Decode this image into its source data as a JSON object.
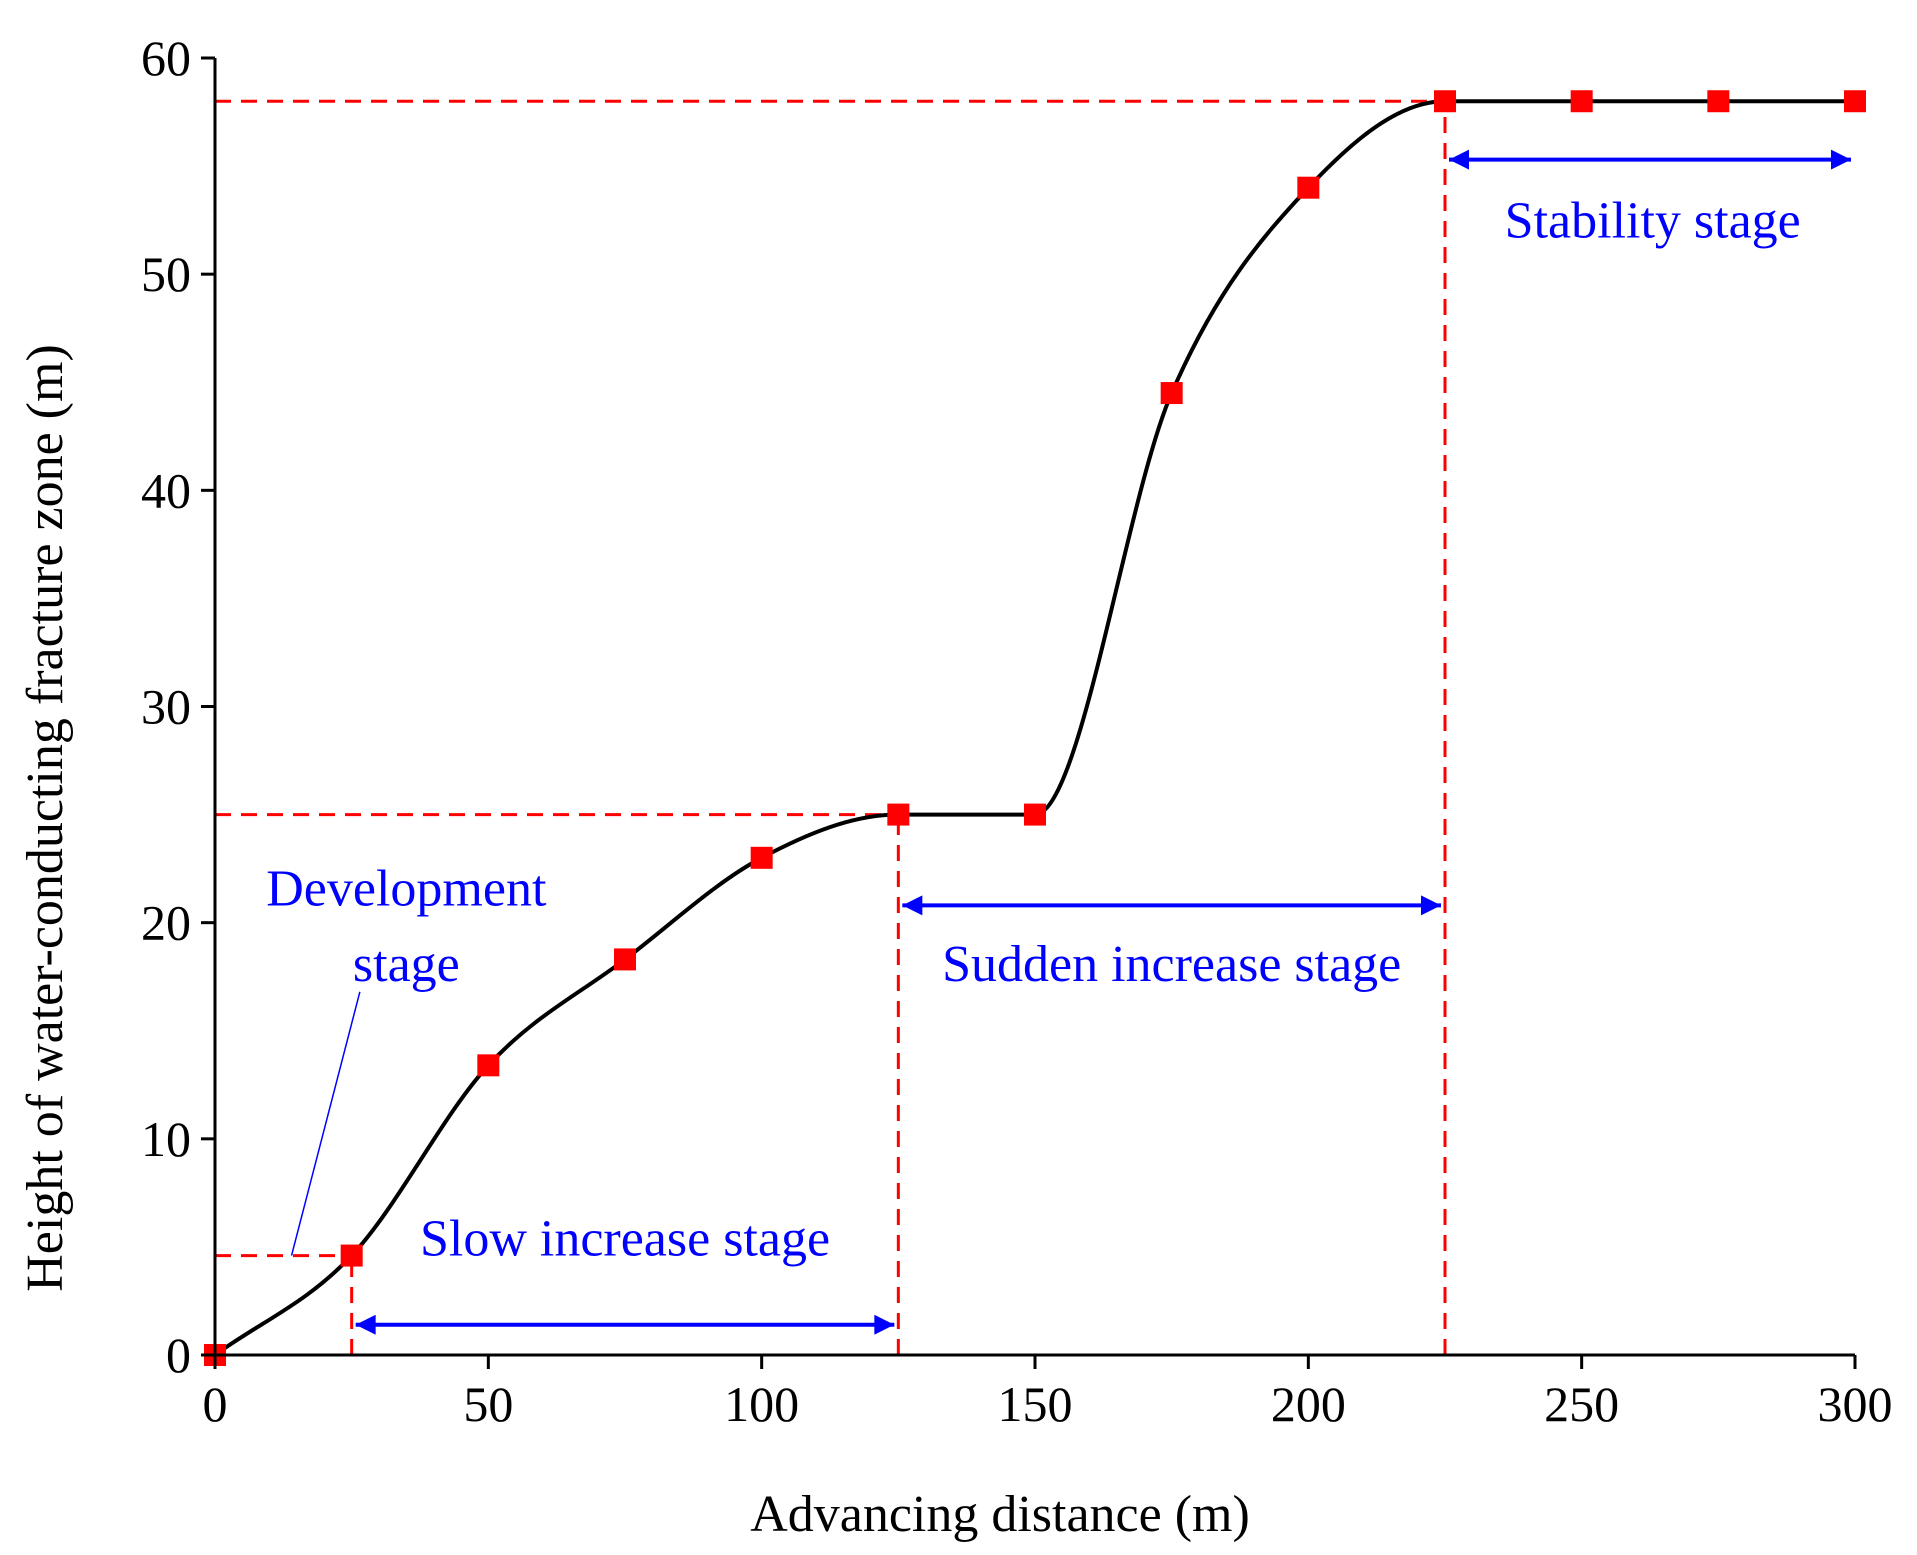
{
  "chart_data": {
    "type": "line",
    "title": "",
    "xlabel": "Advancing distance (m)",
    "ylabel": "Height of water-conducting fracture zone (m)",
    "xlim": [
      0,
      300
    ],
    "ylim": [
      0,
      60
    ],
    "xticks": [
      0,
      50,
      100,
      150,
      200,
      250,
      300
    ],
    "yticks": [
      0,
      10,
      20,
      30,
      40,
      50,
      60
    ],
    "grid": false,
    "series": [
      {
        "name": "Height of water-conducting fracture zone",
        "x": [
          0,
          25,
          50,
          75,
          100,
          125,
          150,
          175,
          200,
          225,
          250,
          275,
          300
        ],
        "y": [
          0,
          4.6,
          13.4,
          18.3,
          23.0,
          25.0,
          25.0,
          44.5,
          54.0,
          58.0,
          58.0,
          58.0,
          58.0
        ],
        "line_color": "#000000",
        "marker": "square",
        "marker_color": "#ff0000"
      }
    ],
    "reference_lines": {
      "color": "#ff0000",
      "horizontal": [
        {
          "y": 4.6,
          "x_from": 0,
          "x_to": 25
        },
        {
          "y": 25,
          "x_from": 0,
          "x_to": 125
        },
        {
          "y": 58,
          "x_from": 0,
          "x_to": 225
        }
      ],
      "vertical": [
        {
          "x": 25,
          "y_from": 0,
          "y_to": 4.6
        },
        {
          "x": 125,
          "y_from": 0,
          "y_to": 25
        },
        {
          "x": 225,
          "y_from": 0,
          "y_to": 58
        }
      ]
    },
    "stage_color": "#0000ff",
    "stages": [
      {
        "name": "slow",
        "label": "Slow increase stage",
        "x_from": 25,
        "x_to": 125,
        "arrow_y": 1.4,
        "label_x": 75,
        "label_y": 4.6
      },
      {
        "name": "sudden",
        "label": "Sudden increase stage",
        "x_from": 125,
        "x_to": 225,
        "arrow_y": 20.8,
        "label_x": 175,
        "label_y": 17.3
      },
      {
        "name": "stability",
        "label": "Stability stage",
        "x_from": 225,
        "x_to": 300,
        "arrow_y": 55.3,
        "label_x": 263,
        "label_y": 51.7
      }
    ],
    "annotations": [
      {
        "name": "development",
        "lines": [
          "Development",
          "stage"
        ],
        "label_x": 35,
        "label_y": [
          20.8,
          17.3
        ],
        "pointer_from": [
          26.5,
          16.8
        ],
        "pointer_to": [
          14,
          4.6
        ]
      }
    ]
  }
}
